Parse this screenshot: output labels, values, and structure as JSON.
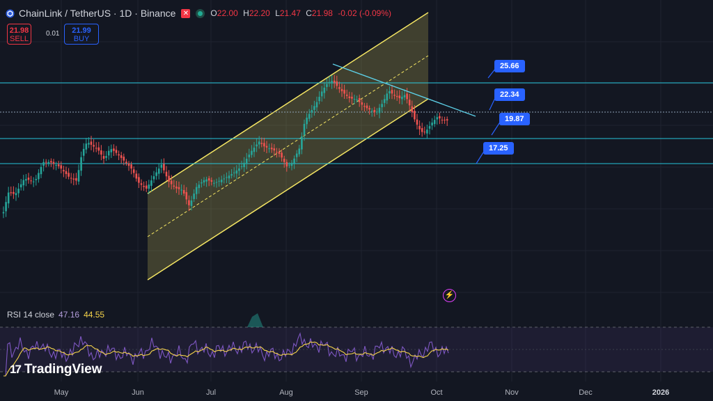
{
  "header": {
    "symbol": "ChainLink / TetherUS · 1D · Binance",
    "open_key": "O",
    "open": "22.00",
    "high_key": "H",
    "high": "22.20",
    "low_key": "L",
    "low": "21.47",
    "close_key": "C",
    "close": "21.98",
    "change": "-0.02 (-0.09%)"
  },
  "trade": {
    "sell_price": "21.98",
    "sell_label": "SELL",
    "spread": "0.01",
    "buy_price": "21.99",
    "buy_label": "BUY"
  },
  "rsi": {
    "label": "RSI 14 close",
    "rsi_value": "47.16",
    "ma_value": "44.55"
  },
  "price_labels": [
    "25.66",
    "22.34",
    "19.87",
    "17.25"
  ],
  "brand": {
    "name": "TradingView"
  },
  "colors": {
    "up": "#26a69a",
    "down": "#ef5350",
    "channel": "#f5e663",
    "level": "#26c6da",
    "trend": "#5ccfe6",
    "label_bg": "#2962ff",
    "rsi": "#7e57c2",
    "rsi_ma": "#f5d34a"
  },
  "chart_data": {
    "type": "candlestick",
    "x_ticks": [
      "May",
      "Jun",
      "Jul",
      "Aug",
      "Sep",
      "Oct",
      "Nov",
      "Dec",
      "2026"
    ],
    "x_tick_bold": "2026",
    "horizontal_levels": [
      25.66,
      22.34,
      19.87,
      17.25
    ],
    "ylim": [
      9.2,
      36.5
    ],
    "candles_summary": [
      {
        "month": "May",
        "low": 11.8,
        "high": 18.0
      },
      {
        "month": "Jun",
        "low": 12.5,
        "high": 16.5
      },
      {
        "month": "Jul",
        "low": 12.3,
        "high": 19.8
      },
      {
        "month": "Aug",
        "low": 16.5,
        "high": 27.0
      },
      {
        "month": "Sep",
        "low": 20.3,
        "high": 25.3
      },
      {
        "month": "Oct",
        "low": 20.3,
        "high": 23.0
      }
    ],
    "rsi_panel": {
      "levels": [
        70,
        50,
        30
      ],
      "last_rsi": 47.16,
      "last_ma": 44.55
    }
  }
}
